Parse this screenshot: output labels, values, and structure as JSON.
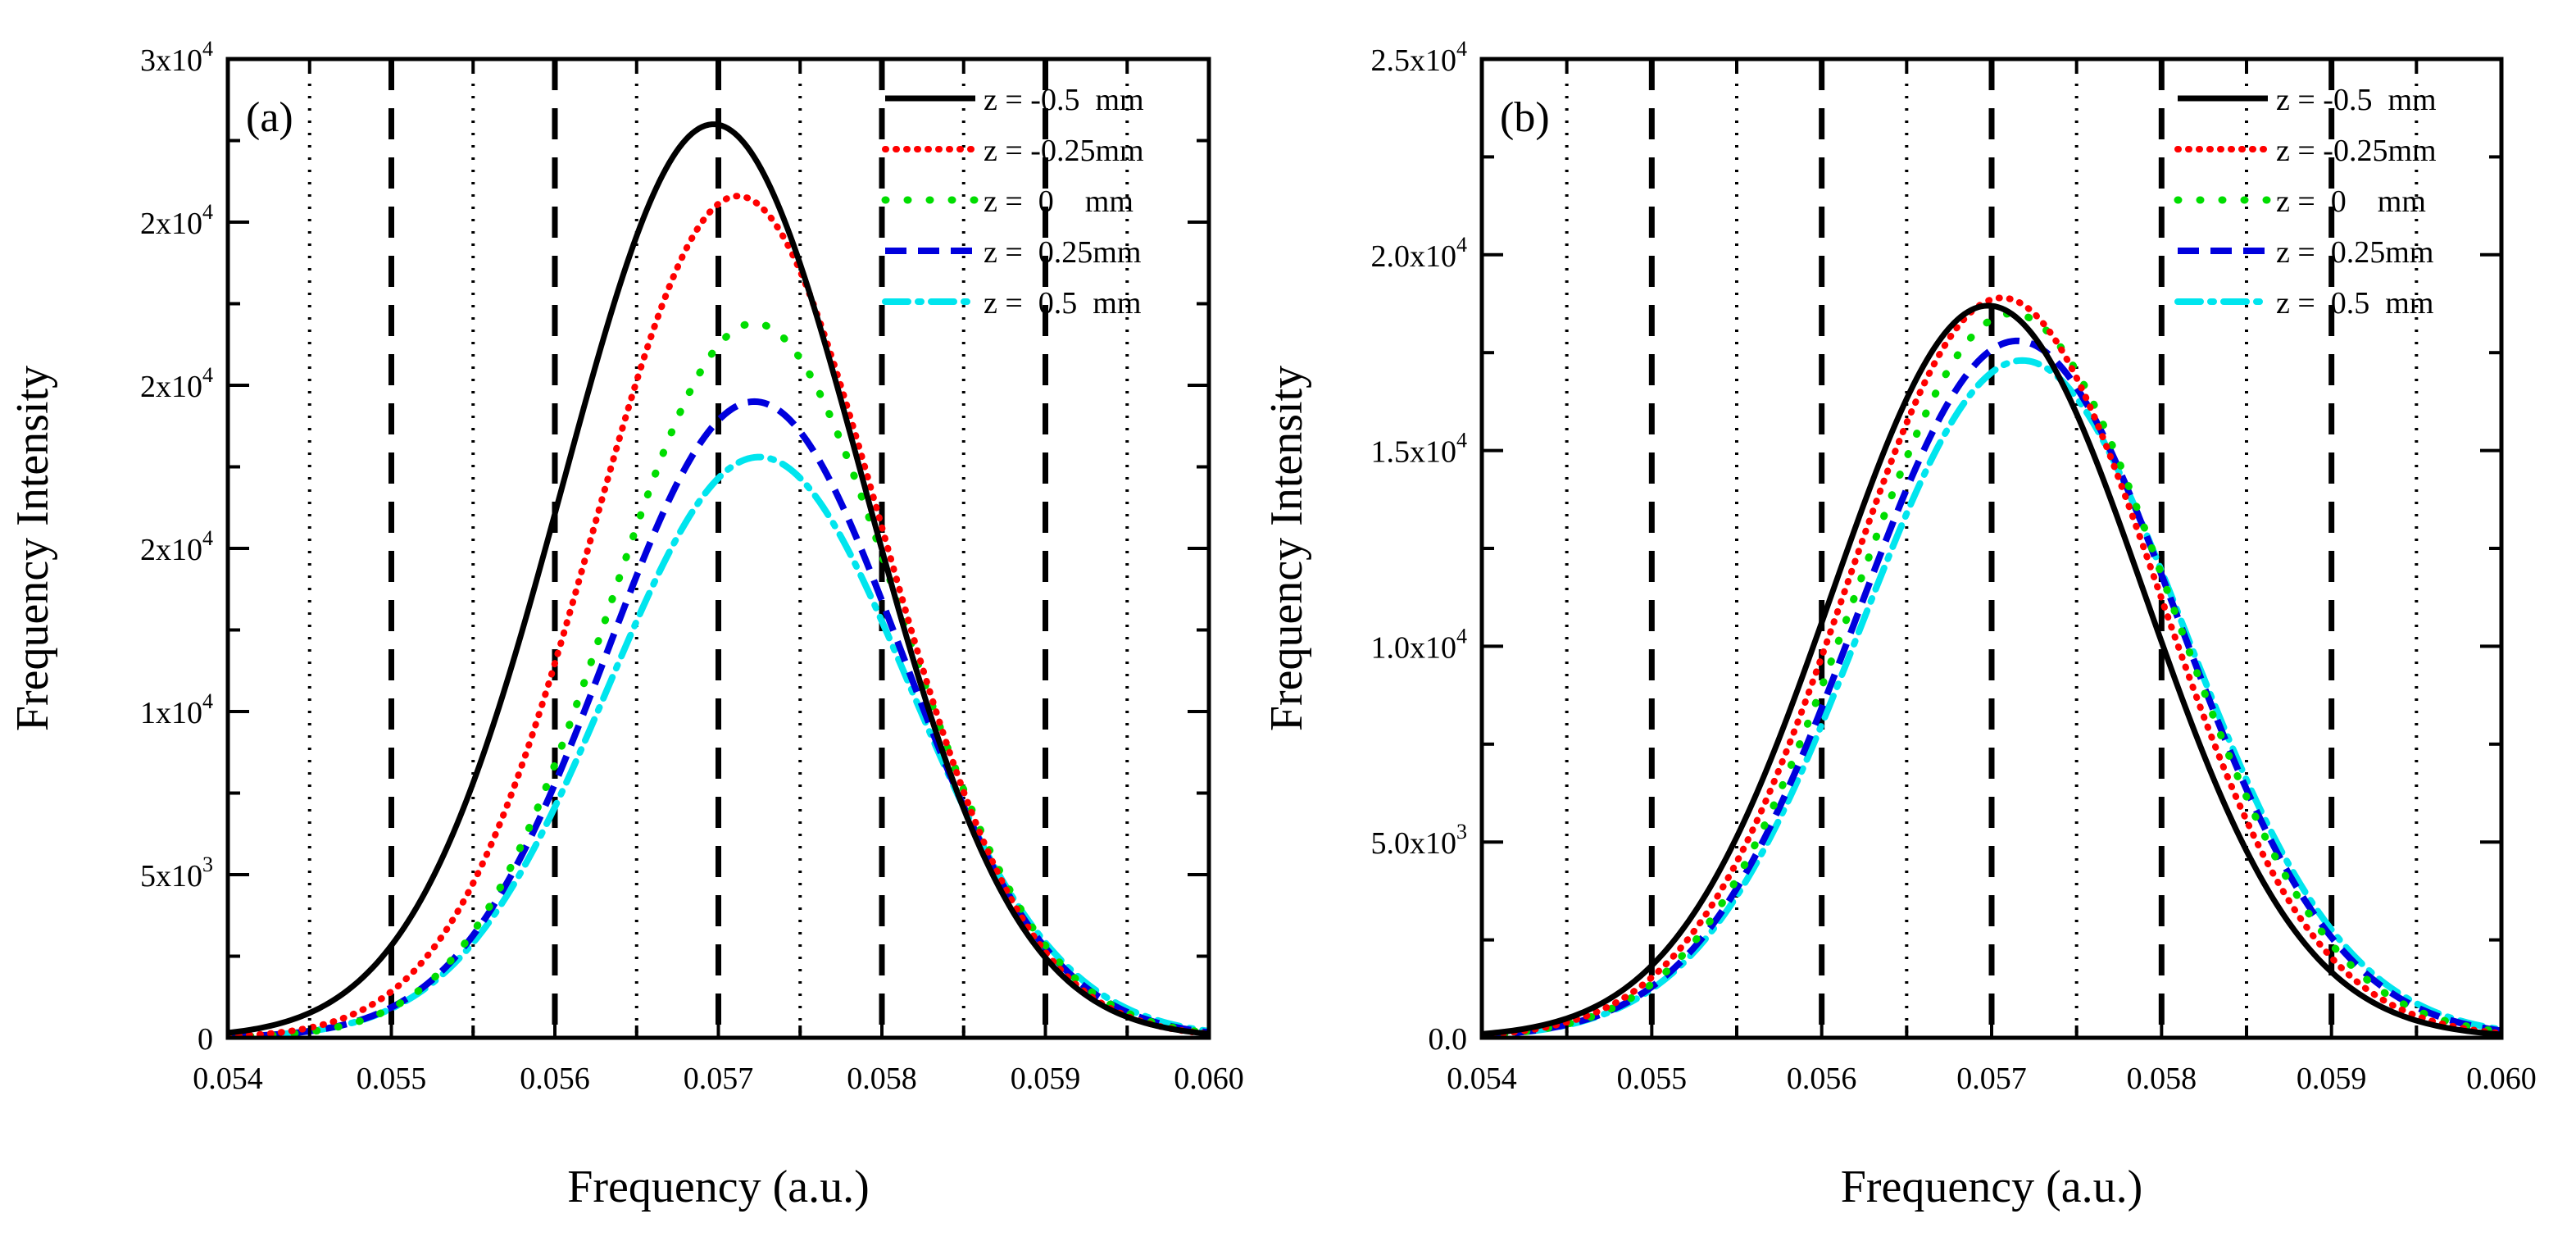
{
  "chart_data": [
    {
      "type": "line",
      "panel_label": "(a)",
      "xlabel": "Frequency (a.u.)",
      "ylabel": "Frequency Intensity",
      "xlim": [
        0.054,
        0.06
      ],
      "ylim": [
        0,
        30000
      ],
      "x_ticks": [
        0.054,
        0.055,
        0.056,
        0.057,
        0.058,
        0.059,
        0.06
      ],
      "x_tick_labels": [
        "0.054",
        "0.055",
        "0.056",
        "0.057",
        "0.058",
        "0.059",
        "0.060"
      ],
      "y_ticks": [
        0,
        5000,
        10000,
        15000,
        20000,
        25000,
        30000
      ],
      "y_tick_labels": [
        {
          "base": "0",
          "exp": ""
        },
        {
          "base": "5x10",
          "exp": "3"
        },
        {
          "base": "1x10",
          "exp": "4"
        },
        {
          "base": "2x10",
          "exp": "4"
        },
        {
          "base": "2x10",
          "exp": "4"
        },
        {
          "base": "2x10",
          "exp": "4"
        },
        {
          "base": "3x10",
          "exp": "4"
        }
      ],
      "vlines_dashed": [
        0.055,
        0.056,
        0.057,
        0.058,
        0.059
      ],
      "vlines_dotted": [
        0.0545,
        0.0555,
        0.0565,
        0.0575,
        0.0585,
        0.0595
      ],
      "legend_position": "top-right",
      "series": [
        {
          "name": "z = -0.5  mm",
          "color": "#000000",
          "style": "solid",
          "peak": 28000,
          "center": 0.05697,
          "sigma": 0.00092
        },
        {
          "name": "z = -0.25mm",
          "color": "#ff0000",
          "style": "dotted",
          "peak": 25800,
          "center": 0.05712,
          "sigma": 0.00088
        },
        {
          "name": "z =  0    mm",
          "color": "#00dd00",
          "style": "sparse-dot",
          "peak": 21900,
          "center": 0.05722,
          "sigma": 0.00088
        },
        {
          "name": "z =  0.25mm",
          "color": "#0000dd",
          "style": "dashed",
          "peak": 19500,
          "center": 0.05722,
          "sigma": 0.0009
        },
        {
          "name": "z =  0.5  mm",
          "color": "#00e5ee",
          "style": "dashdot",
          "peak": 17800,
          "center": 0.05725,
          "sigma": 0.00092
        }
      ]
    },
    {
      "type": "line",
      "panel_label": "(b)",
      "xlabel": "Frequency (a.u.)",
      "ylabel": "Frequency Intensity",
      "xlim": [
        0.054,
        0.06
      ],
      "ylim": [
        0,
        25000
      ],
      "x_ticks": [
        0.054,
        0.055,
        0.056,
        0.057,
        0.058,
        0.059,
        0.06
      ],
      "x_tick_labels": [
        "0.054",
        "0.055",
        "0.056",
        "0.057",
        "0.058",
        "0.059",
        "0.060"
      ],
      "y_ticks": [
        0,
        5000,
        10000,
        15000,
        20000,
        25000
      ],
      "y_tick_labels": [
        {
          "base": "0.0",
          "exp": ""
        },
        {
          "base": "5.0x10",
          "exp": "3"
        },
        {
          "base": "1.0x10",
          "exp": "4"
        },
        {
          "base": "1.5x10",
          "exp": "4"
        },
        {
          "base": "2.0x10",
          "exp": "4"
        },
        {
          "base": "2.5x10",
          "exp": "4"
        }
      ],
      "vlines_dashed": [
        0.055,
        0.056,
        0.057,
        0.058,
        0.059
      ],
      "vlines_dotted": [
        0.0545,
        0.0555,
        0.0565,
        0.0575,
        0.0585,
        0.0595
      ],
      "legend_position": "top-right",
      "series": [
        {
          "name": "z = -0.5  mm",
          "color": "#000000",
          "style": "solid",
          "peak": 18700,
          "center": 0.05698,
          "sigma": 0.00092
        },
        {
          "name": "z = -0.25mm",
          "color": "#ff0000",
          "style": "dotted",
          "peak": 18900,
          "center": 0.05706,
          "sigma": 0.00092
        },
        {
          "name": "z =  0    mm",
          "color": "#00dd00",
          "style": "sparse-dot",
          "peak": 18500,
          "center": 0.05712,
          "sigma": 0.00093
        },
        {
          "name": "z =  0.25mm",
          "color": "#0000dd",
          "style": "dashed",
          "peak": 17800,
          "center": 0.05715,
          "sigma": 0.00094
        },
        {
          "name": "z =  0.5  mm",
          "color": "#00e5ee",
          "style": "dashdot",
          "peak": 17300,
          "center": 0.05718,
          "sigma": 0.00095
        }
      ]
    }
  ]
}
